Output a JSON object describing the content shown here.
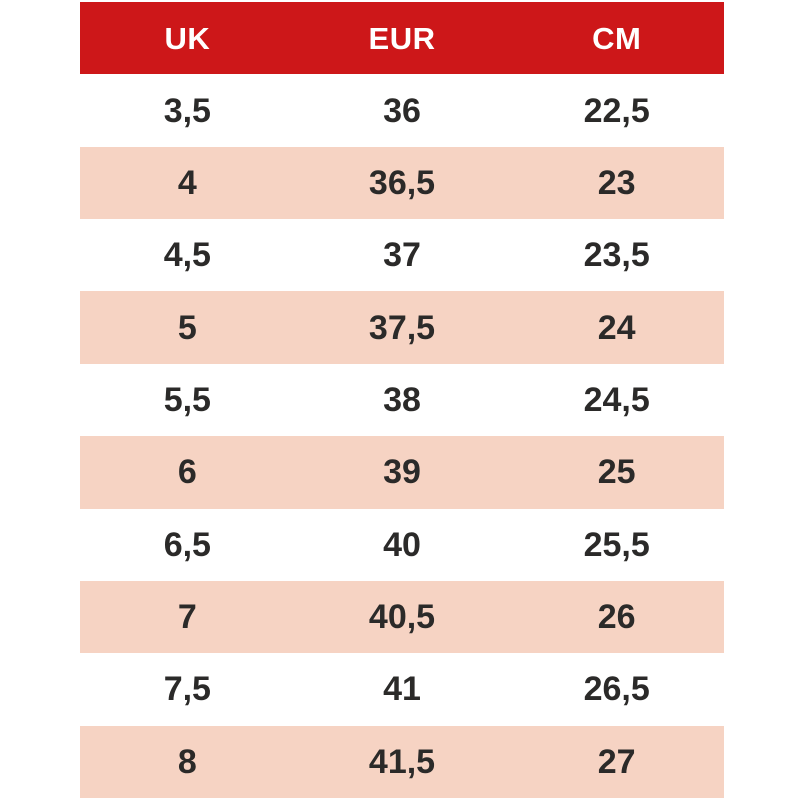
{
  "table": {
    "title": "shoe-size-conversion-chart",
    "columns": [
      "UK",
      "EUR",
      "CM"
    ],
    "rows": [
      [
        "3,5",
        "36",
        "22,5"
      ],
      [
        "4",
        "36,5",
        "23"
      ],
      [
        "4,5",
        "37",
        "23,5"
      ],
      [
        "5",
        "37,5",
        "24"
      ],
      [
        "5,5",
        "38",
        "24,5"
      ],
      [
        "6",
        "39",
        "25"
      ],
      [
        "6,5",
        "40",
        "25,5"
      ],
      [
        "7",
        "40,5",
        "26"
      ],
      [
        "7,5",
        "41",
        "26,5"
      ],
      [
        "8",
        "41,5",
        "27"
      ]
    ],
    "colors": {
      "header_bg": "#cd1719",
      "header_text": "#ffffff",
      "row_bg": "#ffffff",
      "row_alt_bg": "#f6d3c3",
      "cell_text": "#2b2a29",
      "page_bg": "#ffffff"
    }
  },
  "chart_data": {
    "type": "table",
    "title": "Shoe size conversion (UK / EUR / CM)",
    "columns": [
      "UK",
      "EUR",
      "CM"
    ],
    "rows": [
      [
        3.5,
        36,
        22.5
      ],
      [
        4,
        36.5,
        23
      ],
      [
        4.5,
        37,
        23.5
      ],
      [
        5,
        37.5,
        24
      ],
      [
        5.5,
        38,
        24.5
      ],
      [
        6,
        39,
        25
      ],
      [
        6.5,
        40,
        25.5
      ],
      [
        7,
        40.5,
        26
      ],
      [
        7.5,
        41,
        26.5
      ],
      [
        8,
        41.5,
        27
      ]
    ],
    "layout": {
      "header_style": "solid red band, white bold text",
      "row_striping": "alternating white and light salmon pink, starting white",
      "column_alignment": "center",
      "grid": "off"
    }
  }
}
